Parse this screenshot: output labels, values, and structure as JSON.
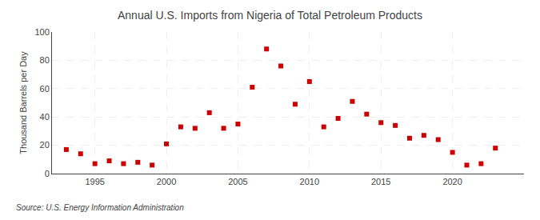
{
  "chart_data": {
    "type": "scatter",
    "title": "Annual U.S. Imports from Nigeria of Total Petroleum Products",
    "ylabel": "Thousand Barrels per Day",
    "source": "Source: U.S. Energy Information Administration",
    "x": [
      1993,
      1994,
      1995,
      1996,
      1997,
      1998,
      1999,
      2000,
      2001,
      2002,
      2003,
      2004,
      2005,
      2006,
      2007,
      2008,
      2009,
      2010,
      2011,
      2012,
      2013,
      2014,
      2015,
      2016,
      2017,
      2018,
      2019,
      2020,
      2021,
      2022,
      2023
    ],
    "values": [
      17,
      14,
      7,
      9,
      7,
      8,
      6,
      21,
      33,
      32,
      43,
      32,
      35,
      61,
      88,
      76,
      49,
      65,
      33,
      39,
      51,
      42,
      36,
      34,
      25,
      27,
      24,
      15,
      6,
      7,
      18
    ],
    "color": "#cc0000",
    "marker": "square",
    "xlim": [
      1992,
      2025
    ],
    "xticks": [
      1995,
      2000,
      2005,
      2010,
      2015,
      2020
    ],
    "ylim": [
      0,
      100
    ],
    "yticks": [
      0,
      20,
      40,
      60,
      80,
      100
    ],
    "grid": true
  }
}
